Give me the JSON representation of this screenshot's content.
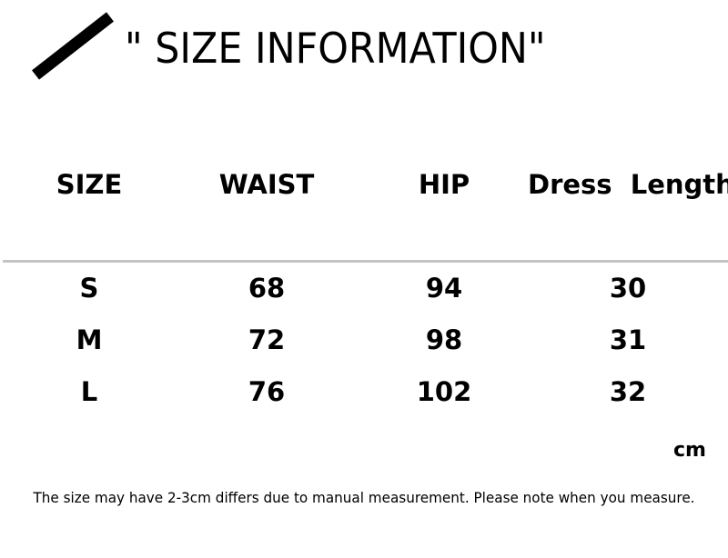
{
  "title": "\" SIZE INFORMATION\"",
  "table": {
    "headers": [
      "SIZE",
      "WAIST",
      "HIP",
      "Dress  Length"
    ],
    "rows": [
      [
        "S",
        "68",
        "94",
        "30"
      ],
      [
        "M",
        "72",
        "98",
        "31"
      ],
      [
        "L",
        "76",
        "102",
        "32"
      ]
    ]
  },
  "unit": "cm",
  "note": "The size may have 2-3cm differs due to manual measurement. Please note when you measure."
}
